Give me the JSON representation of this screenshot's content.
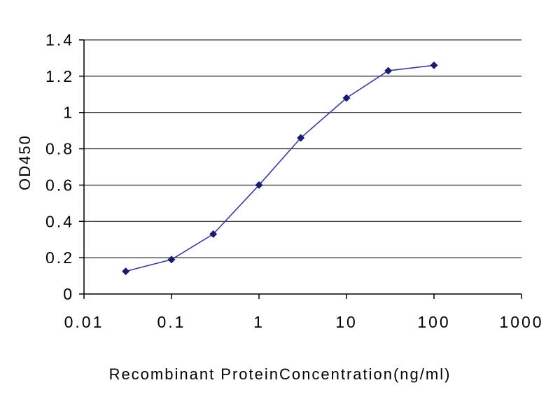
{
  "chart_data": {
    "type": "line",
    "title": "",
    "xlabel": "Recombinant ProteinConcentration(ng/ml)",
    "ylabel": "OD450",
    "x_scale": "log",
    "xlim": [
      0.01,
      1000
    ],
    "ylim": [
      0,
      1.4
    ],
    "grid": "horizontal",
    "legend": "none",
    "marker": "diamond",
    "y_ticks": [
      0,
      0.2,
      0.4,
      0.6,
      0.8,
      1,
      1.2,
      1.4
    ],
    "y_tick_labels": [
      "0",
      "0.2",
      "0.4",
      "0.6",
      "0.8",
      "1",
      "1.2",
      "1.4"
    ],
    "x_ticks": [
      0.01,
      0.1,
      1,
      10,
      100,
      1000
    ],
    "x_tick_labels": [
      "0.01",
      "0.1",
      "1",
      "10",
      "100",
      "1000"
    ],
    "series": [
      {
        "name": "OD450",
        "color": "#3b3b9e",
        "marker_color": "#1c1c6e",
        "x": [
          0.03,
          0.1,
          0.3,
          1,
          3,
          10,
          30,
          100
        ],
        "y": [
          0.125,
          0.19,
          0.33,
          0.6,
          0.86,
          1.08,
          1.23,
          1.26
        ]
      }
    ]
  },
  "colors": {
    "background": "#ffffff",
    "grid": "#000000",
    "axis": "#000000",
    "text": "#000000"
  }
}
